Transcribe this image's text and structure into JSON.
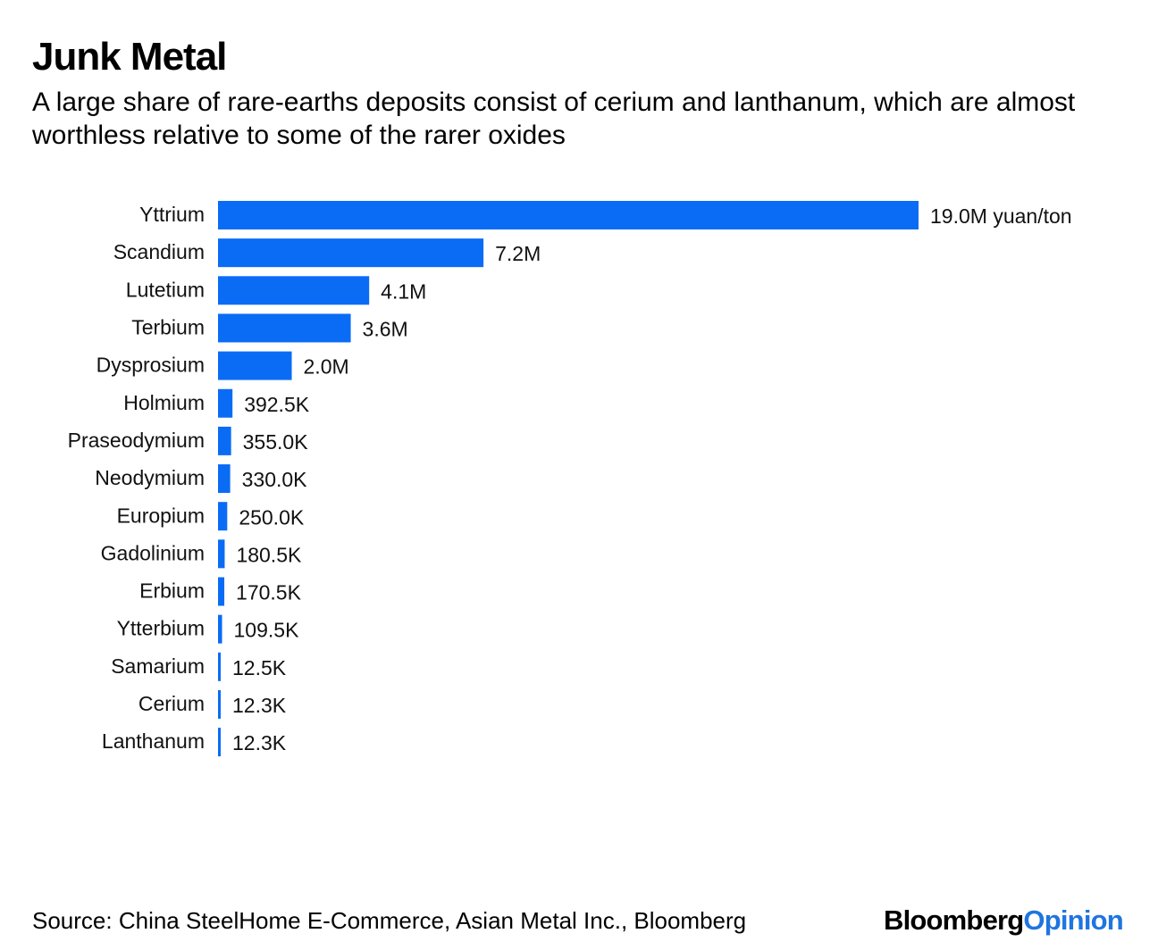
{
  "header": {
    "title": "Junk Metal",
    "subtitle": "A large share of rare-earths deposits consist of cerium and lanthanum, which are almost worthless relative to some of the rarer oxides"
  },
  "footer": {
    "source": "Source: China SteelHome E-Commerce, Asian Metal Inc., Bloomberg",
    "logo_part1": "Bloomberg",
    "logo_part2": "Opinion"
  },
  "colors": {
    "bar": "#0a6cf5",
    "logo_accent": "#1f75e0",
    "text": "#111111"
  },
  "chart_data": {
    "type": "bar",
    "orientation": "horizontal",
    "title": "Junk Metal",
    "subtitle": "A large share of rare-earths deposits consist of cerium and lanthanum, which are almost worthless relative to some of the rarer oxides",
    "xlabel": "",
    "ylabel": "",
    "unit": "yuan/ton",
    "grid": false,
    "legend": "none",
    "xlim": [
      0,
      19000000
    ],
    "categories": [
      "Yttrium",
      "Scandium",
      "Lutetium",
      "Terbium",
      "Dysprosium",
      "Holmium",
      "Praseodymium",
      "Neodymium",
      "Europium",
      "Gadolinium",
      "Erbium",
      "Ytterbium",
      "Samarium",
      "Cerium",
      "Lanthanum"
    ],
    "values": [
      19000000,
      7200000,
      4100000,
      3600000,
      2000000,
      392500,
      355000,
      330000,
      250000,
      180500,
      170500,
      109500,
      12500,
      12300,
      12300
    ],
    "value_labels": [
      "19.0M yuan/ton",
      "7.2M",
      "4.1M",
      "3.6M",
      "2.0M",
      "392.5K",
      "355.0K",
      "330.0K",
      "250.0K",
      "180.5K",
      "170.5K",
      "109.5K",
      "12.5K",
      "12.3K",
      "12.3K"
    ]
  }
}
